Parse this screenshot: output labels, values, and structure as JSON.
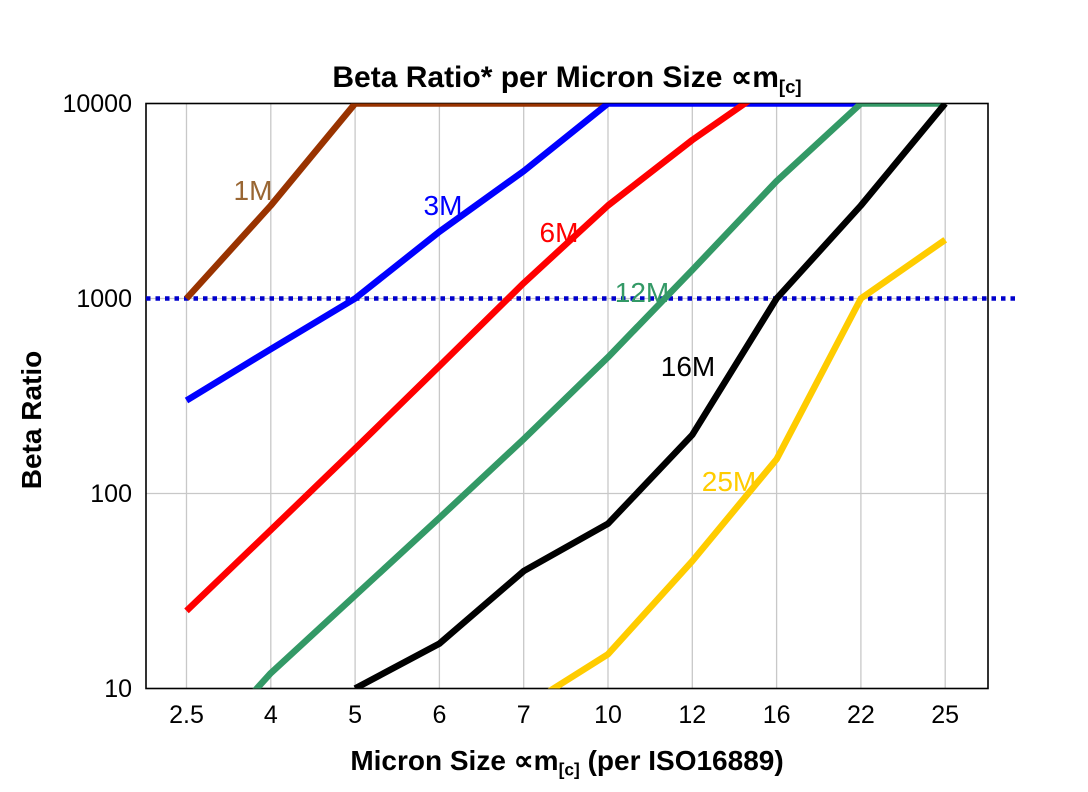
{
  "chart_data": {
    "type": "line",
    "title_prefix": "Beta Ratio* per Micron Size ∝m",
    "title_subscript": "[c]",
    "x_axis": {
      "label_prefix": "Micron Size ∝m",
      "label_subscript": "[c]",
      "label_suffix": " (per ISO16889)",
      "categories": [
        "2.5",
        "4",
        "5",
        "6",
        "7",
        "10",
        "12",
        "16",
        "22",
        "25"
      ]
    },
    "y_axis": {
      "label": "Beta Ratio",
      "scale": "log",
      "min": 10,
      "max": 10000,
      "ticks": [
        "10000",
        "1000",
        "100",
        "10"
      ]
    },
    "grid": {
      "color": "#C8C8C8",
      "vertical": true,
      "horizontal_at": [
        1000,
        100
      ]
    },
    "reference_line": {
      "value": 1000,
      "style": "dotted",
      "color": "#0000CC"
    },
    "legend_position": "inline-labels",
    "series": [
      {
        "name": "1M",
        "color": "#993300",
        "label_color": "#996633",
        "values": [
          1000,
          3000,
          10000,
          10000,
          10000,
          10000,
          null,
          null,
          null,
          null
        ]
      },
      {
        "name": "3M",
        "color": "#0000FF",
        "label_color": "#0000FF",
        "values": [
          300,
          550,
          1000,
          2200,
          4500,
          10000,
          10000,
          10000,
          10000,
          null
        ]
      },
      {
        "name": "6M",
        "color": "#FF0000",
        "label_color": "#FF0000",
        "values": [
          25,
          65,
          170,
          450,
          1200,
          3000,
          6500,
          13000,
          null,
          null
        ]
      },
      {
        "name": "12M",
        "color": "#339966",
        "label_color": "#339966",
        "values": [
          4,
          12,
          30,
          75,
          190,
          500,
          1400,
          4000,
          10000,
          10000
        ]
      },
      {
        "name": "16M",
        "color": "#000000",
        "label_color": "#000000",
        "values": [
          null,
          null,
          10,
          17,
          40,
          70,
          200,
          1000,
          3000,
          10000
        ]
      },
      {
        "name": "25M",
        "color": "#FFCC00",
        "label_color": "#FFCC00",
        "values": [
          null,
          null,
          null,
          null,
          8,
          15,
          45,
          150,
          1000,
          2000
        ]
      }
    ]
  }
}
